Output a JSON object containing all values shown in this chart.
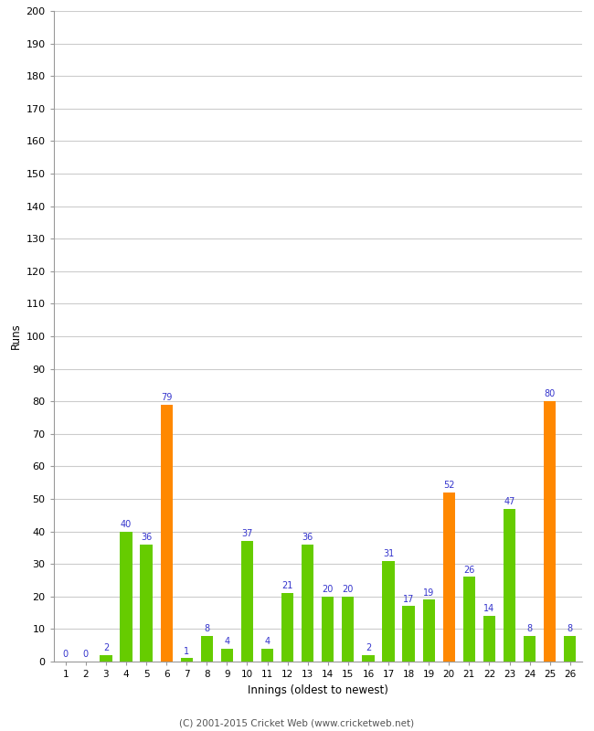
{
  "innings": [
    1,
    2,
    3,
    4,
    5,
    6,
    7,
    8,
    9,
    10,
    11,
    12,
    13,
    14,
    15,
    16,
    17,
    18,
    19,
    20,
    21,
    22,
    23,
    24,
    25,
    26
  ],
  "values": [
    0,
    0,
    2,
    40,
    36,
    79,
    1,
    8,
    4,
    37,
    4,
    21,
    36,
    20,
    20,
    2,
    31,
    17,
    19,
    52,
    26,
    14,
    47,
    8,
    80,
    8
  ],
  "colors": [
    "#66cc00",
    "#66cc00",
    "#66cc00",
    "#66cc00",
    "#66cc00",
    "#ff8800",
    "#66cc00",
    "#66cc00",
    "#66cc00",
    "#66cc00",
    "#66cc00",
    "#66cc00",
    "#66cc00",
    "#66cc00",
    "#66cc00",
    "#66cc00",
    "#66cc00",
    "#66cc00",
    "#66cc00",
    "#ff8800",
    "#66cc00",
    "#66cc00",
    "#66cc00",
    "#66cc00",
    "#ff8800",
    "#66cc00"
  ],
  "xlabel": "Innings (oldest to newest)",
  "ylabel": "Runs",
  "ylim": [
    0,
    200
  ],
  "yticks": [
    0,
    10,
    20,
    30,
    40,
    50,
    60,
    70,
    80,
    90,
    100,
    110,
    120,
    130,
    140,
    150,
    160,
    170,
    180,
    190,
    200
  ],
  "label_color": "#3333cc",
  "bg_color": "#ffffff",
  "grid_color": "#cccccc",
  "footer": "(C) 2001-2015 Cricket Web (www.cricketweb.net)"
}
